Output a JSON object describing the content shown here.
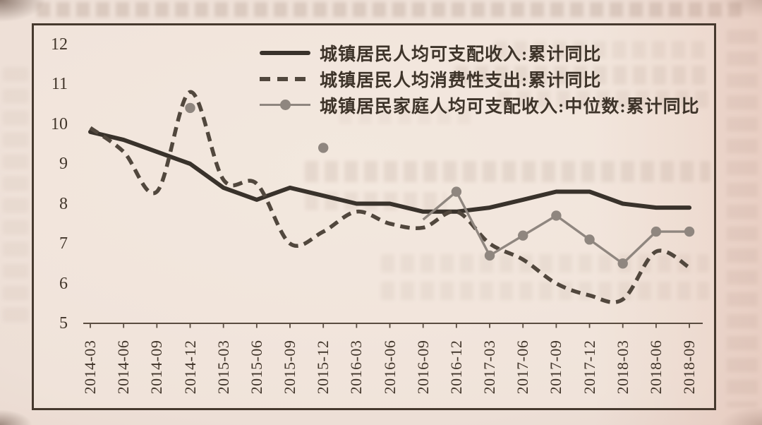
{
  "chart_data": {
    "type": "line",
    "title": "",
    "xlabel": "",
    "ylabel": "",
    "ylim": [
      5,
      12
    ],
    "yticks": [
      12,
      11,
      10,
      9,
      8,
      7,
      6,
      5
    ],
    "grid": false,
    "legend_position": "top-left-inside",
    "categories": [
      "2014-03",
      "2014-06",
      "2014-09",
      "2014-12",
      "2015-03",
      "2015-06",
      "2015-09",
      "2015-12",
      "2016-03",
      "2016-06",
      "2016-09",
      "2016-12",
      "2017-03",
      "2017-06",
      "2017-09",
      "2017-12",
      "2018-03",
      "2018-06",
      "2018-09"
    ],
    "series": [
      {
        "name": "城镇居民人均可支配收入:累计同比",
        "style": "solid",
        "color": "#39322b",
        "values": [
          9.8,
          9.6,
          9.3,
          9.0,
          8.4,
          8.1,
          8.4,
          8.2,
          8.0,
          8.0,
          7.8,
          7.8,
          7.9,
          8.1,
          8.3,
          8.3,
          8.0,
          7.9,
          7.9
        ]
      },
      {
        "name": "城镇居民人均消费性支出:累计同比",
        "style": "dashed",
        "color": "#51473d",
        "values": [
          9.9,
          9.3,
          8.3,
          10.8,
          8.6,
          8.5,
          7.0,
          7.3,
          7.8,
          7.5,
          7.4,
          7.8,
          7.0,
          6.6,
          6.0,
          5.7,
          5.6,
          6.8,
          6.4
        ]
      },
      {
        "name": "城镇居民家庭人均可支配收入:中位数:累计同比",
        "style": "line-marker",
        "color": "#8f867f",
        "values": [
          null,
          null,
          null,
          10.4,
          null,
          null,
          null,
          9.4,
          null,
          null,
          7.6,
          8.3,
          6.7,
          7.2,
          7.7,
          7.1,
          6.5,
          7.3,
          7.3
        ],
        "marker_indices": [
          3,
          7,
          11,
          12,
          13,
          14,
          15,
          16,
          17,
          18
        ],
        "line_from_index": 10
      }
    ]
  }
}
